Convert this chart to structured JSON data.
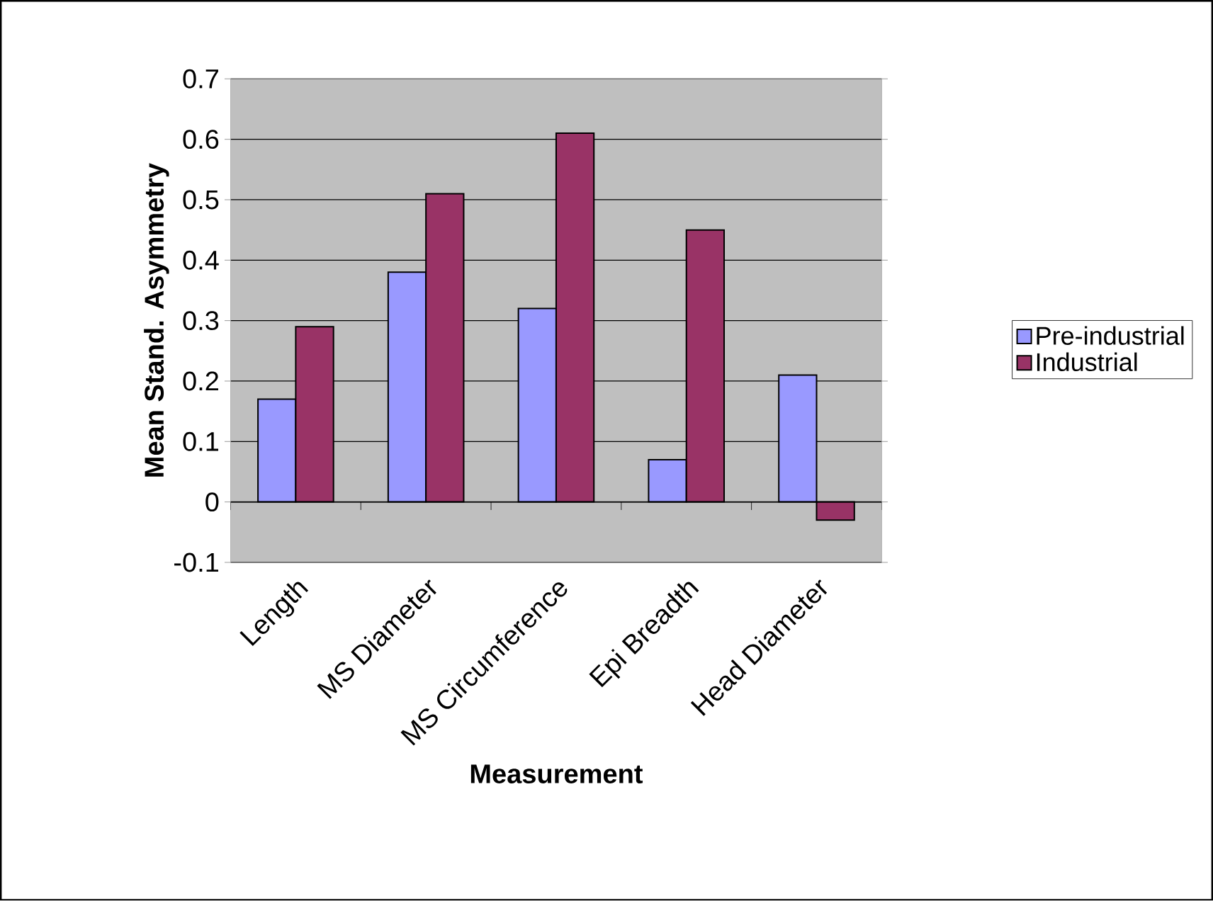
{
  "chart_data": {
    "type": "bar",
    "xlabel": "Measurement",
    "ylabel": "Mean Stand. Asymmetry",
    "categories": [
      "Length",
      "MS Diameter",
      "MS Circumference",
      "Epi Breadth",
      "Head Diameter"
    ],
    "series": [
      {
        "name": "Pre-industrial",
        "color": "#9999ff",
        "values": [
          0.17,
          0.38,
          0.32,
          0.07,
          0.21
        ]
      },
      {
        "name": "Industrial",
        "color": "#993366",
        "values": [
          0.29,
          0.51,
          0.61,
          0.45,
          -0.03
        ]
      }
    ],
    "ylim": [
      -0.1,
      0.7
    ],
    "yticks": [
      -0.1,
      0,
      0.1,
      0.2,
      0.3,
      0.4,
      0.5,
      0.6,
      0.7
    ],
    "grid": "y",
    "legend": "right"
  }
}
